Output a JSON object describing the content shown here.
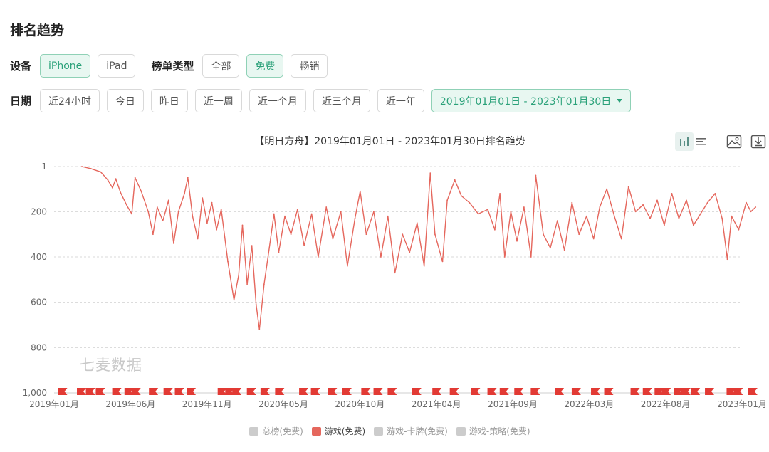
{
  "page": {
    "title": "排名趋势",
    "watermark": "七麦数据"
  },
  "filters": {
    "device_label": "设备",
    "devices": [
      {
        "label": "iPhone",
        "active": true
      },
      {
        "label": "iPad",
        "active": false
      }
    ],
    "chart_type_label": "榜单类型",
    "chart_types": [
      {
        "label": "全部",
        "active": false
      },
      {
        "label": "免费",
        "active": true
      },
      {
        "label": "畅销",
        "active": false
      }
    ],
    "date_label": "日期",
    "date_presets": [
      {
        "label": "近24小时"
      },
      {
        "label": "今日"
      },
      {
        "label": "昨日"
      },
      {
        "label": "近一周"
      },
      {
        "label": "近一个月"
      },
      {
        "label": "近三个月"
      },
      {
        "label": "近一年"
      }
    ],
    "date_range": "2019年01月01日 - 2023年01月30日"
  },
  "toolbar": {
    "icons": [
      "bar-chart-icon",
      "list-icon",
      "image-icon",
      "download-icon"
    ]
  },
  "colors": {
    "accent": "#2aa179",
    "series_line": "#e5675d",
    "flag": "#e23a34",
    "grid": "#d8d8d8",
    "legend_inactive": "#cccccc"
  },
  "chart_data": {
    "type": "line",
    "title": "【明日方舟】2019年01月01日 - 2023年01月30日排名趋势",
    "y_inverted": true,
    "ylim": [
      1,
      1000
    ],
    "yticks": [
      {
        "value": 1,
        "label": "1"
      },
      {
        "value": 200,
        "label": "200"
      },
      {
        "value": 400,
        "label": "400"
      },
      {
        "value": 600,
        "label": "600"
      },
      {
        "value": 800,
        "label": "800"
      },
      {
        "value": 1000,
        "label": "1,000"
      }
    ],
    "xlim": [
      "2019-01",
      "2023-01"
    ],
    "xticks": [
      "2019年01月",
      "2019年06月",
      "2019年11月",
      "2020年05月",
      "2020年10月",
      "2021年04月",
      "2021年09月",
      "2022年03月",
      "2022年08月",
      "2023年01月"
    ],
    "grid": true,
    "legend_position": "bottom",
    "legend": [
      {
        "name": "总榜(免费)",
        "active": false,
        "color": "#cccccc"
      },
      {
        "name": "游戏(免费)",
        "active": true,
        "color": "#e5675d"
      },
      {
        "name": "游戏-卡牌(免费)",
        "active": false,
        "color": "#cccccc"
      },
      {
        "name": "游戏-策略(免费)",
        "active": false,
        "color": "#cccccc"
      }
    ],
    "series": [
      {
        "name": "游戏(免费)",
        "points": [
          [
            "2019-03-01",
            1
          ],
          [
            "2019-03-20",
            10
          ],
          [
            "2019-04-10",
            25
          ],
          [
            "2019-04-25",
            60
          ],
          [
            "2019-05-05",
            95
          ],
          [
            "2019-05-12",
            55
          ],
          [
            "2019-05-22",
            115
          ],
          [
            "2019-06-05",
            175
          ],
          [
            "2019-06-15",
            210
          ],
          [
            "2019-06-22",
            50
          ],
          [
            "2019-07-05",
            110
          ],
          [
            "2019-07-20",
            200
          ],
          [
            "2019-07-30",
            300
          ],
          [
            "2019-08-08",
            180
          ],
          [
            "2019-08-20",
            240
          ],
          [
            "2019-09-01",
            150
          ],
          [
            "2019-09-12",
            340
          ],
          [
            "2019-09-22",
            200
          ],
          [
            "2019-10-05",
            120
          ],
          [
            "2019-10-12",
            50
          ],
          [
            "2019-10-22",
            220
          ],
          [
            "2019-11-02",
            320
          ],
          [
            "2019-11-12",
            140
          ],
          [
            "2019-11-22",
            250
          ],
          [
            "2019-12-02",
            160
          ],
          [
            "2019-12-12",
            280
          ],
          [
            "2019-12-22",
            190
          ],
          [
            "2020-01-05",
            420
          ],
          [
            "2020-01-18",
            590
          ],
          [
            "2020-01-28",
            480
          ],
          [
            "2020-02-05",
            260
          ],
          [
            "2020-02-15",
            520
          ],
          [
            "2020-02-25",
            350
          ],
          [
            "2020-03-05",
            610
          ],
          [
            "2020-03-12",
            720
          ],
          [
            "2020-03-22",
            520
          ],
          [
            "2020-04-02",
            360
          ],
          [
            "2020-04-12",
            210
          ],
          [
            "2020-04-22",
            380
          ],
          [
            "2020-05-05",
            220
          ],
          [
            "2020-05-18",
            300
          ],
          [
            "2020-06-01",
            190
          ],
          [
            "2020-06-15",
            350
          ],
          [
            "2020-07-01",
            210
          ],
          [
            "2020-07-15",
            400
          ],
          [
            "2020-08-01",
            180
          ],
          [
            "2020-08-15",
            320
          ],
          [
            "2020-09-01",
            200
          ],
          [
            "2020-09-15",
            440
          ],
          [
            "2020-10-01",
            230
          ],
          [
            "2020-10-12",
            110
          ],
          [
            "2020-10-25",
            300
          ],
          [
            "2020-11-10",
            200
          ],
          [
            "2020-11-25",
            400
          ],
          [
            "2020-12-10",
            220
          ],
          [
            "2020-12-25",
            470
          ],
          [
            "2021-01-10",
            300
          ],
          [
            "2021-01-25",
            380
          ],
          [
            "2021-02-10",
            250
          ],
          [
            "2021-02-25",
            440
          ],
          [
            "2021-03-10",
            30
          ],
          [
            "2021-03-20",
            300
          ],
          [
            "2021-04-05",
            420
          ],
          [
            "2021-04-15",
            150
          ],
          [
            "2021-05-01",
            60
          ],
          [
            "2021-05-15",
            130
          ],
          [
            "2021-06-01",
            160
          ],
          [
            "2021-06-20",
            210
          ],
          [
            "2021-07-10",
            190
          ],
          [
            "2021-07-25",
            280
          ],
          [
            "2021-08-05",
            120
          ],
          [
            "2021-08-15",
            400
          ],
          [
            "2021-08-28",
            200
          ],
          [
            "2021-09-10",
            330
          ],
          [
            "2021-09-25",
            180
          ],
          [
            "2021-10-10",
            400
          ],
          [
            "2021-10-20",
            40
          ],
          [
            "2021-11-05",
            300
          ],
          [
            "2021-11-20",
            360
          ],
          [
            "2021-12-05",
            240
          ],
          [
            "2021-12-20",
            370
          ],
          [
            "2022-01-05",
            160
          ],
          [
            "2022-01-20",
            300
          ],
          [
            "2022-02-05",
            220
          ],
          [
            "2022-02-20",
            320
          ],
          [
            "2022-03-05",
            180
          ],
          [
            "2022-03-20",
            100
          ],
          [
            "2022-04-05",
            220
          ],
          [
            "2022-04-20",
            320
          ],
          [
            "2022-05-05",
            90
          ],
          [
            "2022-05-20",
            200
          ],
          [
            "2022-06-05",
            170
          ],
          [
            "2022-06-20",
            230
          ],
          [
            "2022-07-05",
            150
          ],
          [
            "2022-07-20",
            260
          ],
          [
            "2022-08-05",
            120
          ],
          [
            "2022-08-20",
            230
          ],
          [
            "2022-09-05",
            150
          ],
          [
            "2022-09-20",
            260
          ],
          [
            "2022-10-05",
            210
          ],
          [
            "2022-10-20",
            160
          ],
          [
            "2022-11-05",
            120
          ],
          [
            "2022-11-20",
            230
          ],
          [
            "2022-12-01",
            410
          ],
          [
            "2022-12-10",
            220
          ],
          [
            "2022-12-25",
            280
          ],
          [
            "2023-01-10",
            160
          ],
          [
            "2023-01-20",
            200
          ],
          [
            "2023-01-30",
            180
          ]
        ]
      }
    ],
    "event_markers": [
      "2019-01-20",
      "2019-03-01",
      "2019-03-20",
      "2019-04-10",
      "2019-05-15",
      "2019-06-10",
      "2019-06-25",
      "2019-08-01",
      "2019-09-01",
      "2019-09-25",
      "2019-10-20",
      "2019-12-25",
      "2020-01-10",
      "2020-01-25",
      "2020-02-25",
      "2020-03-25",
      "2020-04-25",
      "2020-06-15",
      "2020-07-10",
      "2020-08-15",
      "2020-09-15",
      "2020-10-25",
      "2020-11-20",
      "2020-12-20",
      "2021-02-10",
      "2021-03-25",
      "2021-05-01",
      "2021-06-15",
      "2021-07-20",
      "2021-08-15",
      "2021-09-15",
      "2021-10-20",
      "2021-12-10",
      "2022-01-15",
      "2022-02-25",
      "2022-03-25",
      "2022-05-20",
      "2022-06-15",
      "2022-07-10",
      "2022-07-25",
      "2022-08-20",
      "2022-09-05",
      "2022-09-25",
      "2022-10-25",
      "2022-12-10",
      "2022-12-25",
      "2023-01-25"
    ]
  }
}
